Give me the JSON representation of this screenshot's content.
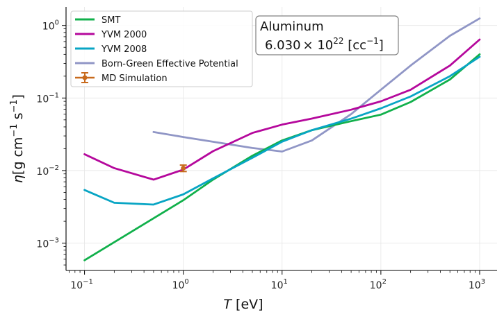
{
  "chart_data": {
    "type": "line",
    "x_scale": "log",
    "y_scale": "log",
    "xlim": [
      0.065,
      1500
    ],
    "ylim": [
      0.00042,
      1.8
    ],
    "xlabel_base": "T",
    "xlabel_rest": " [eV]",
    "ylabel_base": "η",
    "ylabel_rest": "[g cm",
    "ylabel_exp1": "−1",
    "ylabel_mid": " s",
    "ylabel_exp2": "−1",
    "ylabel_end": "]",
    "grid": true,
    "legend_position": "upper-left",
    "x_ticks": [
      {
        "value": 0.1,
        "base": "10",
        "exp": "−1"
      },
      {
        "value": 1,
        "base": "10",
        "exp": "0"
      },
      {
        "value": 10,
        "base": "10",
        "exp": "1"
      },
      {
        "value": 100,
        "base": "10",
        "exp": "2"
      },
      {
        "value": 1000,
        "base": "10",
        "exp": "3"
      }
    ],
    "y_ticks": [
      {
        "value": 0.001,
        "base": "10",
        "exp": "−3"
      },
      {
        "value": 0.01,
        "base": "10",
        "exp": "−2"
      },
      {
        "value": 0.1,
        "base": "10",
        "exp": "−1"
      },
      {
        "value": 1,
        "base": "10",
        "exp": "0"
      }
    ],
    "series": [
      {
        "name": "SMT",
        "color": "#11b04b",
        "x": [
          0.1,
          1,
          2,
          5,
          10,
          20,
          50,
          100,
          200,
          500,
          1000
        ],
        "y": [
          0.00058,
          0.0039,
          0.0075,
          0.016,
          0.026,
          0.036,
          0.048,
          0.059,
          0.088,
          0.18,
          0.4
        ]
      },
      {
        "name": "YVM 2000",
        "color": "#b5089c",
        "x": [
          0.1,
          0.2,
          0.5,
          1,
          2,
          5,
          10,
          20,
          50,
          100,
          200,
          500,
          1000
        ],
        "y": [
          0.0168,
          0.0108,
          0.0075,
          0.0103,
          0.0185,
          0.033,
          0.043,
          0.052,
          0.069,
          0.09,
          0.13,
          0.28,
          0.64
        ]
      },
      {
        "name": "YVM 2008",
        "color": "#08a5c4",
        "x": [
          0.1,
          0.2,
          0.5,
          1,
          2,
          5,
          10,
          20,
          50,
          100,
          200,
          500,
          1000
        ],
        "y": [
          0.0054,
          0.0036,
          0.0034,
          0.0047,
          0.0078,
          0.015,
          0.025,
          0.036,
          0.052,
          0.072,
          0.105,
          0.2,
          0.37
        ]
      },
      {
        "name": "Born-Green Effective Potential",
        "color": "#9096c6",
        "x": [
          0.5,
          1,
          5,
          10,
          20,
          50,
          100,
          200,
          500,
          1000
        ],
        "y": [
          0.034,
          0.029,
          0.0205,
          0.0183,
          0.026,
          0.06,
          0.13,
          0.28,
          0.72,
          1.25
        ]
      }
    ],
    "scatter": {
      "name": "MD Simulation",
      "color": "#c86a1c",
      "x": [
        1.0
      ],
      "y": [
        0.0108
      ],
      "yerr": [
        0.0011
      ]
    },
    "annotation_line1": "Aluminum",
    "annotation_value": "6.030",
    "annotation_times": "× 10",
    "annotation_exp": "22",
    "annotation_unit_open": " [cc",
    "annotation_unit_exp": "−1",
    "annotation_unit_close": "]"
  }
}
